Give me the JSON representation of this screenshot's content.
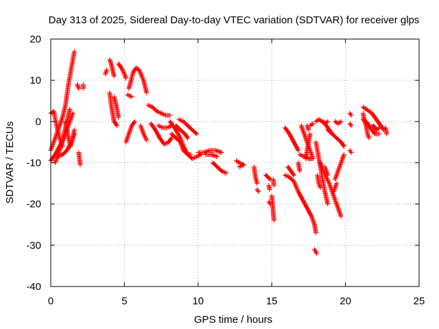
{
  "chart_data": {
    "type": "scatter",
    "title": "Day 313 of 2025, Sidereal Day-to-day VTEC variation (SDTVAR) for receiver glps",
    "xlabel": "GPS time / hours",
    "ylabel": "SDTVAR / TECUs",
    "xlim": [
      0,
      25
    ],
    "ylim": [
      -40,
      20
    ],
    "xticks": [
      0,
      5,
      10,
      15,
      20,
      25
    ],
    "yticks": [
      -40,
      -30,
      -20,
      -10,
      0,
      10,
      20
    ],
    "grid": true,
    "marker": "+",
    "color": "#ff0000",
    "series": [
      {
        "name": "SDTVAR",
        "tracks": [
          [
            [
              0.0,
              -7
            ],
            [
              0.2,
              -5
            ],
            [
              0.4,
              -3
            ],
            [
              0.6,
              -1
            ],
            [
              0.8,
              1
            ],
            [
              1.0,
              4
            ],
            [
              1.2,
              9
            ],
            [
              1.4,
              13
            ],
            [
              1.6,
              17
            ]
          ],
          [
            [
              0.0,
              -9.5
            ],
            [
              0.3,
              -8
            ],
            [
              0.6,
              -6
            ],
            [
              0.9,
              -4
            ],
            [
              1.2,
              -1
            ],
            [
              1.5,
              2
            ]
          ],
          [
            [
              0.0,
              2
            ],
            [
              0.2,
              2.5
            ],
            [
              0.4,
              -1
            ],
            [
              0.6,
              -4
            ],
            [
              0.8,
              -6
            ]
          ],
          [
            [
              0.3,
              -10
            ],
            [
              0.5,
              -8
            ],
            [
              0.7,
              -6
            ],
            [
              0.9,
              -3
            ],
            [
              1.1,
              0
            ],
            [
              1.3,
              3
            ]
          ],
          [
            [
              0.5,
              -8.5
            ],
            [
              0.8,
              -8
            ],
            [
              1.1,
              -7
            ],
            [
              1.4,
              -5
            ],
            [
              1.6,
              -3
            ]
          ],
          [
            [
              1.0,
              0
            ],
            [
              1.1,
              -2
            ],
            [
              1.2,
              -4
            ],
            [
              1.35,
              -6
            ],
            [
              1.5,
              -4
            ],
            [
              1.6,
              -2
            ]
          ],
          [
            [
              1.8,
              9
            ],
            [
              1.9,
              8
            ]
          ],
          [
            [
              2.2,
              9
            ],
            [
              2.2,
              8
            ]
          ],
          [
            [
              1.9,
              -7.5
            ],
            [
              1.95,
              -9
            ],
            [
              2.0,
              -10.5
            ]
          ],
          [
            [
              3.7,
              11.5
            ],
            [
              3.8,
              12.5
            ]
          ],
          [
            [
              4.0,
              15
            ],
            [
              4.1,
              14
            ],
            [
              4.2,
              12.5
            ],
            [
              4.3,
              11
            ]
          ],
          [
            [
              4.6,
              14
            ],
            [
              4.8,
              13
            ],
            [
              5.0,
              11.5
            ],
            [
              5.1,
              10.5
            ]
          ],
          [
            [
              4.0,
              7
            ],
            [
              4.1,
              4
            ],
            [
              4.2,
              2
            ],
            [
              4.3,
              0
            ],
            [
              4.5,
              -1
            ]
          ],
          [
            [
              4.3,
              6
            ],
            [
              4.5,
              3
            ],
            [
              4.6,
              1
            ]
          ],
          [
            [
              5.3,
              8
            ],
            [
              5.6,
              12
            ],
            [
              5.8,
              13
            ],
            [
              6.0,
              12.5
            ],
            [
              6.3,
              10
            ],
            [
              6.5,
              7
            ]
          ],
          [
            [
              5.2,
              6.5
            ],
            [
              5.5,
              6
            ]
          ],
          [
            [
              5.1,
              -5
            ],
            [
              5.3,
              -3
            ],
            [
              5.5,
              -1
            ],
            [
              5.7,
              0
            ]
          ],
          [
            [
              6.1,
              -1
            ],
            [
              6.3,
              -3
            ],
            [
              6.5,
              -4.5
            ]
          ],
          [
            [
              6.6,
              4
            ],
            [
              6.9,
              3.5
            ],
            [
              7.2,
              2.5
            ],
            [
              7.5,
              2
            ],
            [
              7.8,
              1.5
            ],
            [
              8.1,
              1.5
            ]
          ],
          [
            [
              6.8,
              -0.5
            ],
            [
              7.1,
              -2
            ],
            [
              7.4,
              -4
            ],
            [
              7.7,
              -5.5
            ],
            [
              8.0,
              -5
            ],
            [
              8.2,
              -4
            ]
          ],
          [
            [
              7.3,
              -1
            ],
            [
              7.6,
              -1.5
            ],
            [
              7.9,
              -1.5
            ],
            [
              8.2,
              -1
            ]
          ],
          [
            [
              8.1,
              0
            ],
            [
              8.4,
              -1.5
            ],
            [
              8.8,
              -4
            ],
            [
              9.0,
              -6
            ],
            [
              9.3,
              -8
            ],
            [
              9.6,
              -9
            ],
            [
              9.9,
              -8.5
            ],
            [
              10.2,
              -8
            ]
          ],
          [
            [
              8.7,
              0.5
            ],
            [
              9.0,
              0
            ],
            [
              9.3,
              -1
            ],
            [
              9.6,
              -2
            ],
            [
              9.9,
              -3
            ]
          ],
          [
            [
              8.2,
              -3
            ],
            [
              8.5,
              -4
            ],
            [
              8.8,
              -5
            ],
            [
              9.0,
              -7
            ],
            [
              9.3,
              -8
            ],
            [
              9.5,
              -8
            ]
          ],
          [
            [
              8.5,
              -1
            ],
            [
              8.8,
              -2
            ],
            [
              9.1,
              -3
            ],
            [
              9.3,
              -4
            ]
          ],
          [
            [
              10.0,
              -7.5
            ],
            [
              10.4,
              -7.5
            ],
            [
              10.8,
              -7
            ],
            [
              11.2,
              -7
            ],
            [
              11.6,
              -7.5
            ]
          ],
          [
            [
              10.5,
              -8
            ],
            [
              10.9,
              -8
            ],
            [
              11.3,
              -8.5
            ]
          ],
          [
            [
              11.0,
              -10
            ],
            [
              11.3,
              -11
            ],
            [
              11.6,
              -12
            ],
            [
              11.9,
              -12.5
            ]
          ],
          [
            [
              12.6,
              -9.5
            ],
            [
              12.8,
              -10
            ],
            [
              13.1,
              -10.5
            ]
          ],
          [
            [
              12.8,
              -11
            ],
            [
              13.1,
              -10.5
            ]
          ],
          [
            [
              13.8,
              -11
            ],
            [
              13.85,
              -12.5
            ],
            [
              13.9,
              -13.5
            ],
            [
              14.0,
              -15
            ]
          ],
          [
            [
              14.0,
              -16.5
            ],
            [
              14.1,
              -17
            ]
          ],
          [
            [
              14.6,
              -13
            ],
            [
              14.75,
              -13.5
            ],
            [
              14.9,
              -14
            ]
          ],
          [
            [
              14.8,
              -15.5
            ],
            [
              14.85,
              -16.5
            ]
          ],
          [
            [
              14.8,
              -19.5
            ],
            [
              14.9,
              -20
            ]
          ],
          [
            [
              15.1,
              -14
            ],
            [
              15.15,
              -15.5
            ]
          ],
          [
            [
              15.0,
              -18
            ],
            [
              15.05,
              -20
            ],
            [
              15.1,
              -22
            ],
            [
              15.15,
              -24
            ]
          ],
          [
            [
              15.9,
              -1.5
            ],
            [
              16.2,
              -3
            ],
            [
              16.5,
              -5
            ],
            [
              16.8,
              -7
            ]
          ],
          [
            [
              15.9,
              -13
            ],
            [
              16.2,
              -13.5
            ],
            [
              16.5,
              -14.5
            ],
            [
              16.8,
              -17
            ],
            [
              17.1,
              -19
            ],
            [
              17.4,
              -21
            ],
            [
              17.7,
              -23
            ],
            [
              17.9,
              -25
            ],
            [
              18.0,
              -27
            ]
          ],
          [
            [
              16.1,
              -11
            ],
            [
              16.3,
              -12
            ],
            [
              16.5,
              -13
            ]
          ],
          [
            [
              16.9,
              -8
            ],
            [
              17.2,
              -8.5
            ],
            [
              17.5,
              -9
            ],
            [
              17.7,
              -9
            ],
            [
              17.8,
              -9
            ]
          ],
          [
            [
              16.8,
              -10
            ],
            [
              16.9,
              -12
            ]
          ],
          [
            [
              17.0,
              -1
            ],
            [
              17.2,
              -3
            ],
            [
              17.4,
              -5
            ],
            [
              17.6,
              -7
            ],
            [
              17.8,
              -9
            ]
          ],
          [
            [
              17.4,
              -1
            ],
            [
              17.5,
              -2
            ]
          ],
          [
            [
              17.6,
              -3
            ],
            [
              17.5,
              -5
            ],
            [
              17.4,
              -7
            ],
            [
              17.3,
              -9
            ]
          ],
          [
            [
              18.3,
              -10
            ],
            [
              18.5,
              -12
            ],
            [
              18.7,
              -13.5
            ],
            [
              18.9,
              -15
            ],
            [
              19.1,
              -17
            ],
            [
              19.3,
              -19
            ],
            [
              19.5,
              -21
            ],
            [
              19.7,
              -23
            ]
          ],
          [
            [
              18.1,
              -13
            ],
            [
              18.2,
              -15
            ],
            [
              18.3,
              -16
            ]
          ],
          [
            [
              18.6,
              -11
            ],
            [
              18.8,
              -13
            ]
          ],
          [
            [
              18.8,
              -2
            ],
            [
              19.1,
              -3
            ],
            [
              19.4,
              -4
            ],
            [
              19.7,
              -5
            ],
            [
              19.9,
              -6
            ]
          ],
          [
            [
              18.5,
              0
            ],
            [
              18.7,
              -1
            ],
            [
              18.9,
              -2
            ],
            [
              19.1,
              -3
            ]
          ],
          [
            [
              19.3,
              -14
            ],
            [
              19.5,
              -12
            ],
            [
              19.7,
              -10
            ],
            [
              19.9,
              -8
            ]
          ],
          [
            [
              19.2,
              -17
            ],
            [
              19.4,
              -15
            ]
          ],
          [
            [
              18.0,
              -5
            ],
            [
              18.2,
              -9
            ],
            [
              18.4,
              -13
            ],
            [
              18.6,
              -17
            ],
            [
              18.8,
              -20
            ]
          ],
          [
            [
              17.9,
              -31
            ],
            [
              18.05,
              -32
            ]
          ],
          [
            [
              18.0,
              0
            ],
            [
              18.2,
              0.5
            ],
            [
              18.4,
              0
            ],
            [
              18.6,
              -0.5
            ],
            [
              18.8,
              0
            ]
          ],
          [
            [
              17.6,
              -1
            ],
            [
              17.8,
              -0.5
            ]
          ],
          [
            [
              19.3,
              0
            ],
            [
              19.5,
              -0.5
            ],
            [
              19.7,
              0
            ]
          ],
          [
            [
              20.3,
              2
            ],
            [
              20.4,
              1.5
            ]
          ],
          [
            [
              20.3,
              -0.5
            ],
            [
              20.4,
              -1
            ]
          ],
          [
            [
              20.3,
              -7
            ],
            [
              20.4,
              -7.5
            ]
          ],
          [
            [
              21.2,
              3.5
            ],
            [
              21.4,
              3
            ],
            [
              21.6,
              2.5
            ],
            [
              21.8,
              2
            ],
            [
              22.0,
              1
            ],
            [
              22.2,
              0
            ],
            [
              22.4,
              -1
            ],
            [
              22.6,
              -2
            ]
          ],
          [
            [
              21.2,
              0.5
            ],
            [
              21.4,
              0
            ],
            [
              21.6,
              -1
            ],
            [
              21.8,
              -2
            ],
            [
              22.0,
              -3
            ],
            [
              22.3,
              -3
            ]
          ],
          [
            [
              21.2,
              2
            ],
            [
              21.3,
              0
            ],
            [
              21.4,
              -1
            ],
            [
              21.5,
              -3
            ],
            [
              21.6,
              -4
            ]
          ],
          [
            [
              21.5,
              -1
            ],
            [
              21.7,
              -1.5
            ],
            [
              21.9,
              -1
            ],
            [
              22.1,
              -2
            ],
            [
              22.3,
              -1.5
            ]
          ],
          [
            [
              22.7,
              -1.5
            ],
            [
              22.75,
              -2
            ],
            [
              22.8,
              -3
            ]
          ]
        ]
      }
    ]
  }
}
